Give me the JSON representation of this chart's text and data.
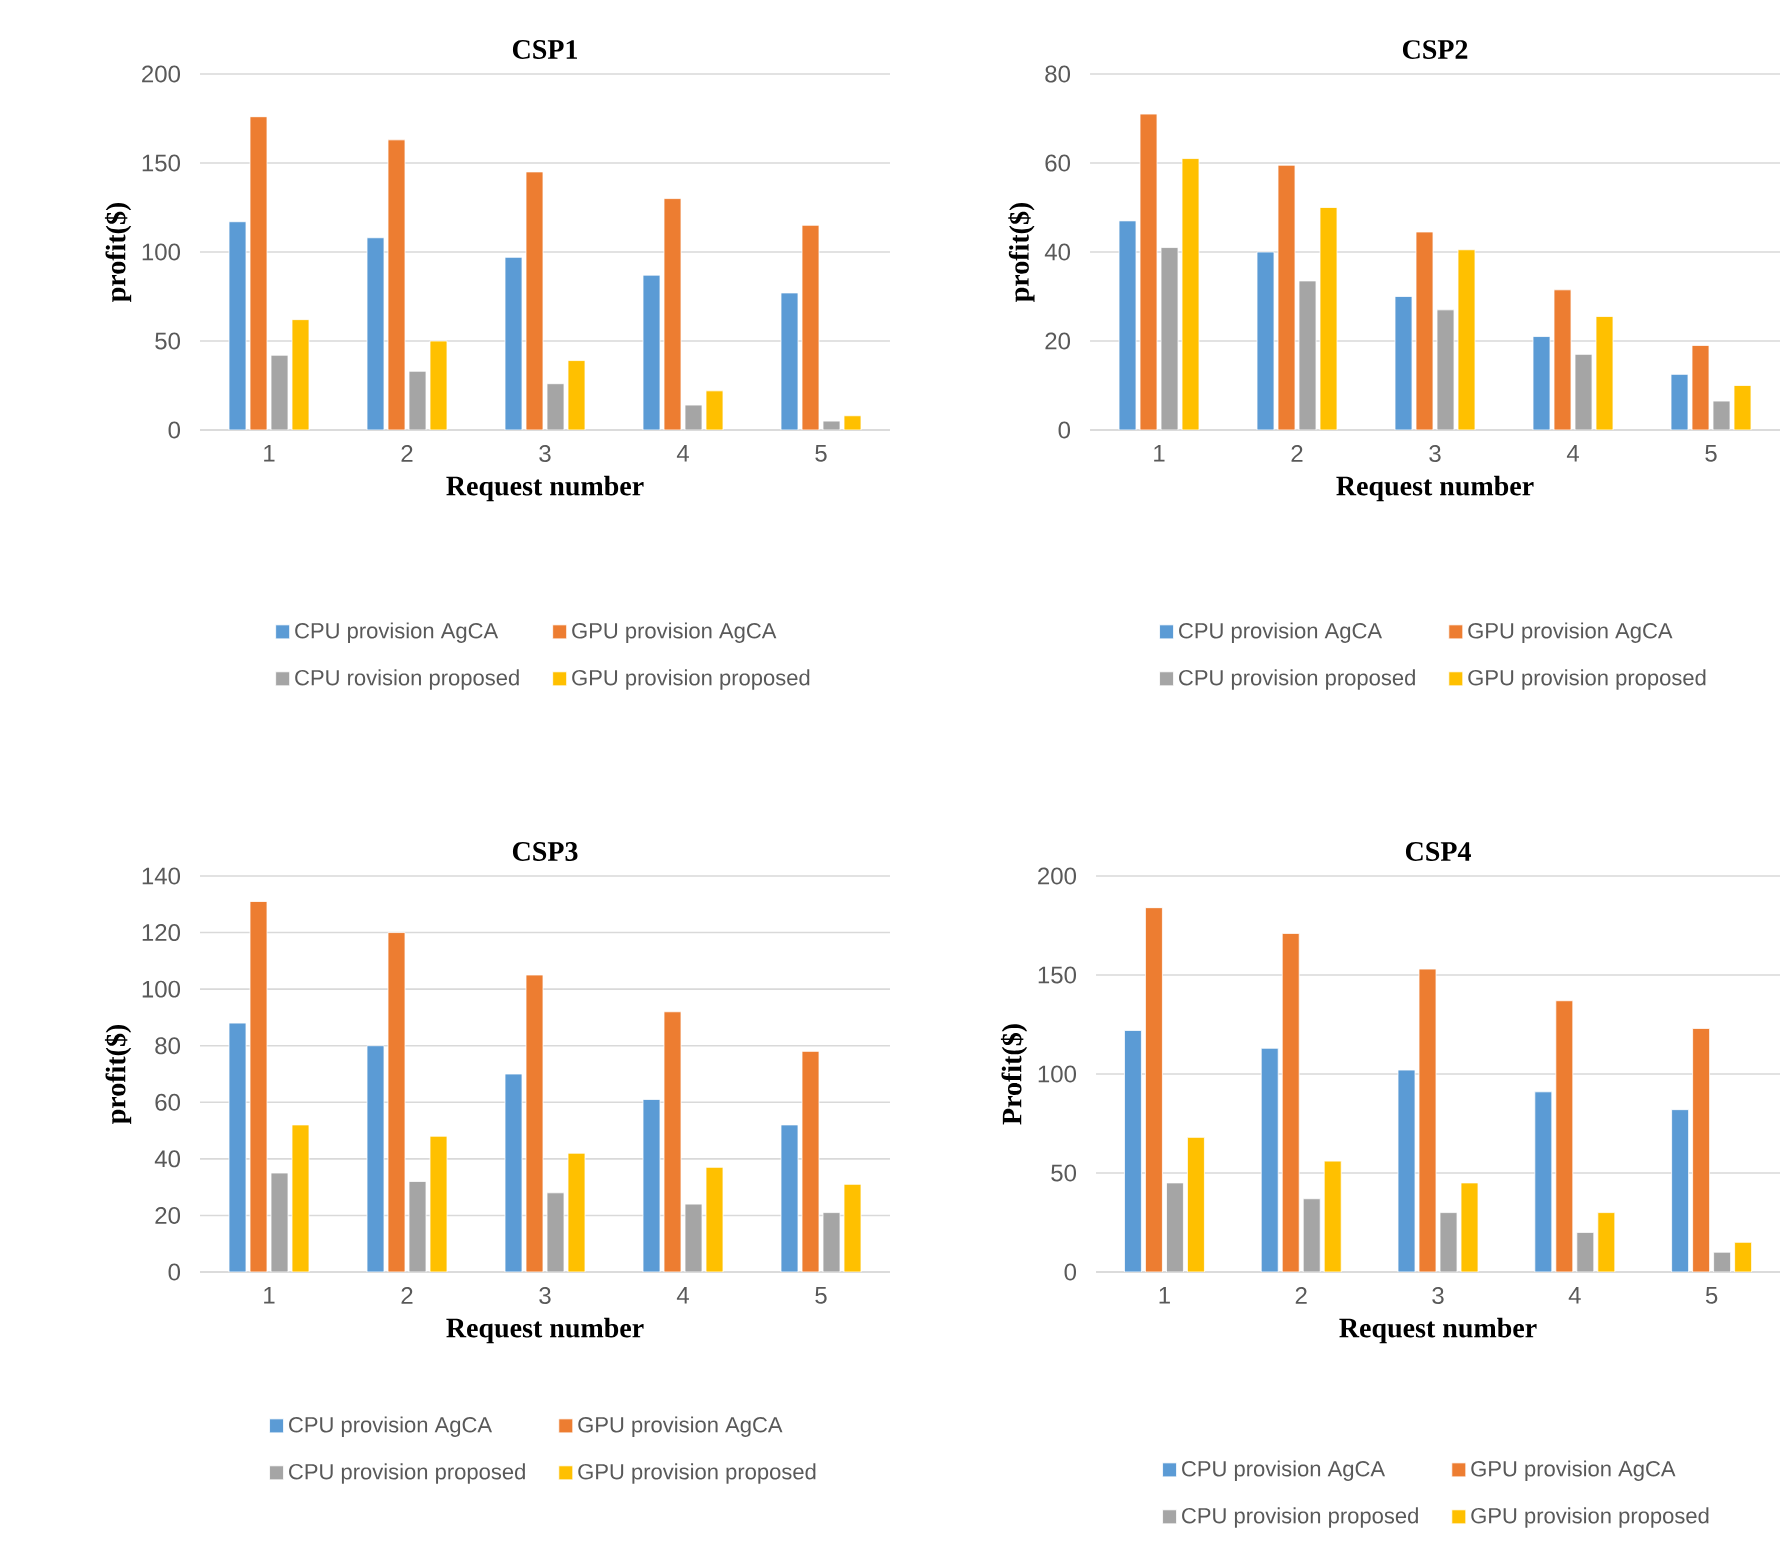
{
  "chart_data": [
    {
      "type": "bar",
      "title": "CSP1",
      "xlabel": "Request number",
      "ylabel": "profit($)",
      "categories": [
        "1",
        "2",
        "3",
        "4",
        "5"
      ],
      "ylim": [
        0,
        200
      ],
      "yticks": [
        0,
        50,
        100,
        150,
        200
      ],
      "grid": "y",
      "legend": "bottom",
      "series": [
        {
          "name": "CPU provision AgCA",
          "color": "#5b9bd5",
          "values": [
            117,
            108,
            97,
            87,
            77
          ]
        },
        {
          "name": "GPU provision AgCA",
          "color": "#ed7d31",
          "values": [
            176,
            163,
            145,
            130,
            115
          ]
        },
        {
          "name": "CPU rovision proposed",
          "color": "#a5a5a5",
          "values": [
            42,
            33,
            26,
            14,
            5
          ]
        },
        {
          "name": "GPU provision proposed",
          "color": "#ffc000",
          "values": [
            62,
            50,
            39,
            22,
            8
          ]
        }
      ]
    },
    {
      "type": "bar",
      "title": "CSP2",
      "xlabel": "Request number",
      "ylabel": "profit($)",
      "categories": [
        "1",
        "2",
        "3",
        "4",
        "5"
      ],
      "ylim": [
        0,
        80
      ],
      "yticks": [
        0,
        20,
        40,
        60,
        80
      ],
      "grid": "y",
      "legend": "bottom",
      "series": [
        {
          "name": "CPU provision AgCA",
          "color": "#5b9bd5",
          "values": [
            47,
            40,
            30,
            21,
            12.5
          ]
        },
        {
          "name": "GPU provision AgCA",
          "color": "#ed7d31",
          "values": [
            71,
            59.5,
            44.5,
            31.5,
            19
          ]
        },
        {
          "name": "CPU provision proposed",
          "color": "#a5a5a5",
          "values": [
            41,
            33.5,
            27,
            17,
            6.5
          ]
        },
        {
          "name": "GPU provision proposed",
          "color": "#ffc000",
          "values": [
            61,
            50,
            40.5,
            25.5,
            10
          ]
        }
      ]
    },
    {
      "type": "bar",
      "title": "CSP3",
      "xlabel": "Request number",
      "ylabel": "profit($)",
      "categories": [
        "1",
        "2",
        "3",
        "4",
        "5"
      ],
      "ylim": [
        0,
        140
      ],
      "yticks": [
        0,
        20,
        40,
        60,
        80,
        100,
        120,
        140
      ],
      "grid": "y",
      "legend": "bottom",
      "series": [
        {
          "name": "CPU provision AgCA",
          "color": "#5b9bd5",
          "values": [
            88,
            80,
            70,
            61,
            52
          ]
        },
        {
          "name": "GPU provision AgCA",
          "color": "#ed7d31",
          "values": [
            131,
            120,
            105,
            92,
            78
          ]
        },
        {
          "name": "CPU provision proposed",
          "color": "#a5a5a5",
          "values": [
            35,
            32,
            28,
            24,
            21
          ]
        },
        {
          "name": "GPU provision proposed",
          "color": "#ffc000",
          "values": [
            52,
            48,
            42,
            37,
            31
          ]
        }
      ]
    },
    {
      "type": "bar",
      "title": "CSP4",
      "xlabel": "Request number",
      "ylabel": "Profit($)",
      "categories": [
        "1",
        "2",
        "3",
        "4",
        "5"
      ],
      "ylim": [
        0,
        200
      ],
      "yticks": [
        0,
        50,
        100,
        150,
        200
      ],
      "grid": "y",
      "legend": "bottom",
      "series": [
        {
          "name": "CPU provision AgCA",
          "color": "#5b9bd5",
          "values": [
            122,
            113,
            102,
            91,
            82
          ]
        },
        {
          "name": "GPU provision AgCA",
          "color": "#ed7d31",
          "values": [
            184,
            171,
            153,
            137,
            123
          ]
        },
        {
          "name": "CPU provision proposed",
          "color": "#a5a5a5",
          "values": [
            45,
            37,
            30,
            20,
            10
          ]
        },
        {
          "name": "GPU provision proposed",
          "color": "#ffc000",
          "values": [
            68,
            56,
            45,
            30,
            15
          ]
        }
      ]
    }
  ]
}
